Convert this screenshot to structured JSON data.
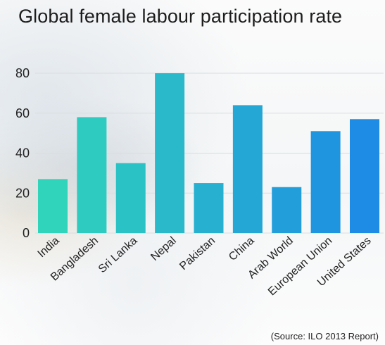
{
  "chart_data": {
    "type": "bar",
    "title": "Global female labour participation rate",
    "categories": [
      "India",
      "Bangladesh",
      "Sri Lanka",
      "Nepal",
      "Pakistan",
      "China",
      "Arab World",
      "European Union",
      "United States"
    ],
    "values": [
      27,
      58,
      35,
      80,
      25,
      64,
      23,
      51,
      57
    ],
    "ylim": [
      0,
      80
    ],
    "yticks": [
      "0",
      "20",
      "40",
      "60",
      "80"
    ],
    "xlabel": "",
    "ylabel": "",
    "grid": true,
    "legend": "none",
    "source": "(Source: ILO 2013 Report)",
    "colors": {
      "bar_start": "#2fd4bb",
      "bar_end": "#1e8ce4",
      "grid": "#d9dde0",
      "text": "#222222"
    }
  }
}
